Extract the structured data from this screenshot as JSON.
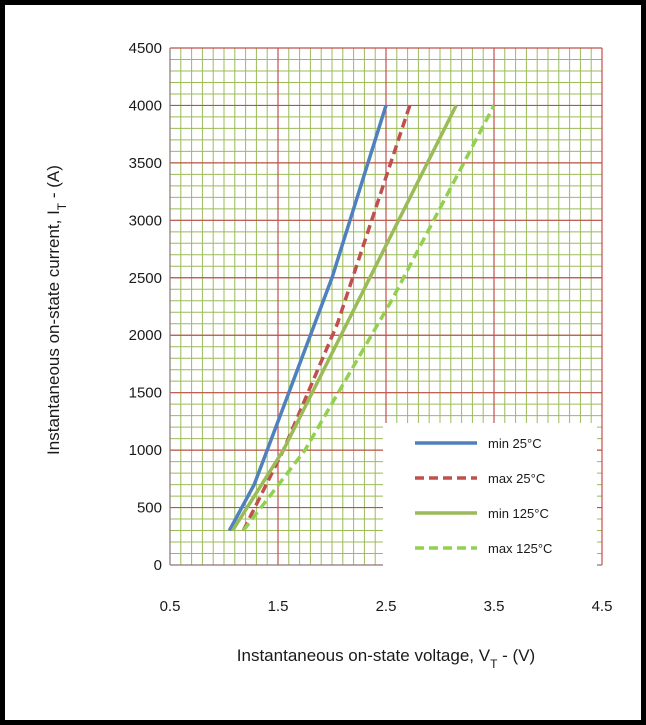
{
  "chart_data": {
    "type": "line",
    "xlabel": {
      "main": "Instantaneous on-state voltage, V",
      "sub": "T",
      "tail": " - (V)"
    },
    "ylabel": {
      "main": "Instantaneous on-state current, I",
      "sub": "T",
      "tail": " - (A)"
    },
    "xlim": [
      0.5,
      4.5
    ],
    "ylim": [
      0,
      4500
    ],
    "x_ticks": [
      0.5,
      1.5,
      2.5,
      3.5,
      4.5
    ],
    "x_tick_labels": [
      "0.5",
      "1.5",
      "2.5",
      "3.5",
      "4.5"
    ],
    "y_ticks": [
      0,
      500,
      1000,
      1500,
      2000,
      2500,
      3000,
      3500,
      4000,
      4500
    ],
    "y_tick_labels": [
      "0",
      "500",
      "1000",
      "1500",
      "2000",
      "2500",
      "3000",
      "3500",
      "4000",
      "4500"
    ],
    "grid": {
      "major_color": "#c0504d",
      "minor_color": "#9bbb59",
      "x_minor_step": 0.1,
      "y_minor_step": 100
    },
    "legend_position": "bottom-right",
    "series": [
      {
        "name": "min 25°C",
        "color": "#4f81bd",
        "dash": "solid",
        "points": [
          [
            1.05,
            300
          ],
          [
            1.28,
            700
          ],
          [
            1.6,
            1500
          ],
          [
            2.0,
            2500
          ],
          [
            2.5,
            4000
          ]
        ]
      },
      {
        "name": "max 25°C",
        "color": "#c0504d",
        "dash": "dashed",
        "points": [
          [
            1.18,
            300
          ],
          [
            1.55,
            1000
          ],
          [
            2.05,
            2100
          ],
          [
            2.72,
            4000
          ]
        ]
      },
      {
        "name": "min 125°C",
        "color": "#9bbb59",
        "dash": "solid",
        "points": [
          [
            1.08,
            300
          ],
          [
            1.55,
            1000
          ],
          [
            2.35,
            2500
          ],
          [
            3.15,
            4000
          ]
        ]
      },
      {
        "name": "max 125°C",
        "color": "#92d050",
        "dash": "dashed",
        "points": [
          [
            1.18,
            300
          ],
          [
            1.75,
            1000
          ],
          [
            2.55,
            2300
          ],
          [
            3.5,
            4000
          ]
        ]
      }
    ]
  }
}
